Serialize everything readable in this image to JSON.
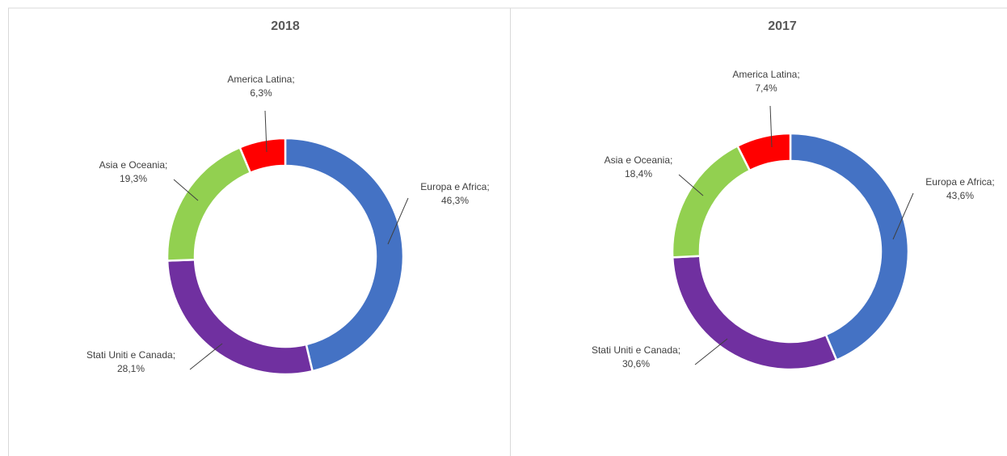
{
  "chart_data": [
    {
      "type": "donut",
      "title": "2018",
      "categories": [
        "Europa e Africa;",
        "Stati Uniti e Canada;",
        "Asia e Oceania;",
        "America Latina;"
      ],
      "values": [
        46.3,
        28.1,
        19.3,
        6.3
      ],
      "value_labels": [
        "46,3%",
        "28,1%",
        "19,3%",
        "6,3%"
      ],
      "colors": [
        "#4472c4",
        "#7030a0",
        "#92d050",
        "#ff0000"
      ]
    },
    {
      "type": "donut",
      "title": "2017",
      "categories": [
        "Europa e Africa;",
        "Stati Uniti e Canada;",
        "Asia e Oceania;",
        "America Latina;"
      ],
      "values": [
        43.6,
        30.6,
        18.4,
        7.4
      ],
      "value_labels": [
        "43,6%",
        "30,6%",
        "18,4%",
        "7,4%"
      ],
      "colors": [
        "#4472c4",
        "#7030a0",
        "#92d050",
        "#ff0000"
      ]
    }
  ]
}
